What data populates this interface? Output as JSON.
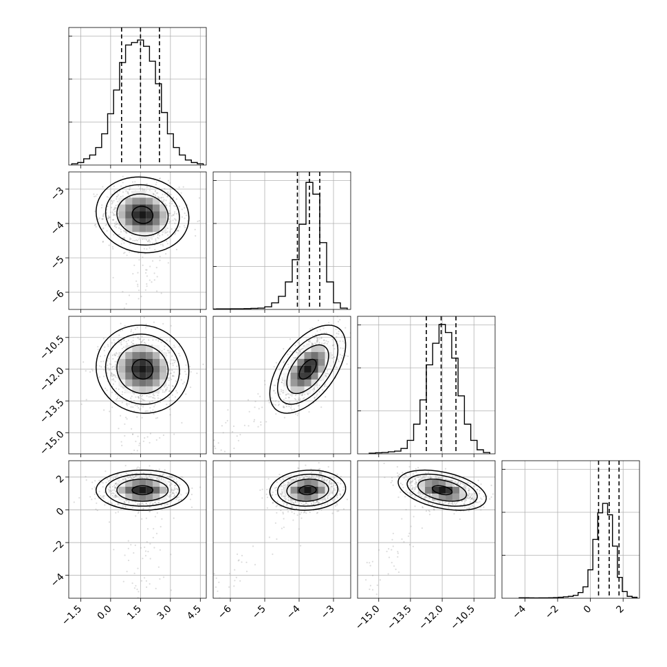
{
  "chart_data": {
    "type": "corner",
    "grid": true,
    "parameters": [
      {
        "range": [
          -2.1,
          4.8
        ],
        "ticks": [
          -1.5,
          0.0,
          1.5,
          3.0,
          4.5
        ],
        "tick_labels": [
          "−1.5",
          "0.0",
          "1.5",
          "3.0",
          "4.5"
        ],
        "quantiles": [
          0.55,
          1.5,
          2.45
        ],
        "hist_x": [
          -1.8,
          -1.5,
          -1.2,
          -0.9,
          -0.6,
          -0.3,
          0.0,
          0.3,
          0.6,
          0.9,
          1.2,
          1.5,
          1.8,
          2.1,
          2.4,
          2.7,
          3.0,
          3.3,
          3.6,
          3.9,
          4.2,
          4.5
        ],
        "hist_counts": [
          0.01,
          0.02,
          0.05,
          0.08,
          0.14,
          0.25,
          0.41,
          0.6,
          0.82,
          0.96,
          0.98,
          1.0,
          0.95,
          0.83,
          0.65,
          0.42,
          0.25,
          0.14,
          0.08,
          0.04,
          0.02,
          0.01
        ],
        "hist_max": 1.1,
        "center": 1.6,
        "spread": 0.95
      },
      {
        "range": [
          -6.5,
          -2.5
        ],
        "ticks": [
          -6,
          -5,
          -4,
          -3
        ],
        "tick_labels": [
          "−6",
          "−5",
          "−4",
          "−3"
        ],
        "quantiles": [
          -4.05,
          -3.7,
          -3.4
        ],
        "hist_x": [
          -6.5,
          -6.3,
          -6.1,
          -5.9,
          -5.7,
          -5.5,
          -5.3,
          -5.1,
          -4.9,
          -4.7,
          -4.5,
          -4.3,
          -4.1,
          -3.9,
          -3.7,
          -3.5,
          -3.3,
          -3.1,
          -2.9,
          -2.7
        ],
        "hist_counts": [
          0.003,
          0.004,
          0.004,
          0.005,
          0.005,
          0.006,
          0.008,
          0.01,
          0.02,
          0.05,
          0.1,
          0.21,
          0.38,
          0.65,
          0.97,
          0.88,
          0.51,
          0.21,
          0.05,
          0.01
        ],
        "hist_max": 1.05,
        "center": -3.75,
        "spread": 0.45
      },
      {
        "range": [
          -16.0,
          -9.5
        ],
        "ticks": [
          -15.0,
          -13.5,
          -12.0,
          -10.5
        ],
        "tick_labels": [
          "−15.0",
          "−13.5",
          "−12.0",
          "−10.5"
        ],
        "quantiles": [
          -12.75,
          -12.05,
          -11.35
        ],
        "hist_x": [
          -15.3,
          -15.0,
          -14.7,
          -14.4,
          -14.1,
          -13.8,
          -13.5,
          -13.2,
          -12.9,
          -12.6,
          -12.3,
          -12.0,
          -11.7,
          -11.4,
          -11.1,
          -10.8,
          -10.5,
          -10.2,
          -9.9
        ],
        "hist_counts": [
          0.005,
          0.008,
          0.01,
          0.015,
          0.02,
          0.04,
          0.1,
          0.22,
          0.4,
          0.66,
          0.82,
          0.96,
          0.9,
          0.71,
          0.43,
          0.22,
          0.1,
          0.03,
          0.01
        ],
        "hist_max": 1.02,
        "center": -12.0,
        "spread": 0.85
      },
      {
        "range": [
          -5.4,
          3.0
        ],
        "ticks": [
          -4,
          -2,
          0,
          2
        ],
        "tick_labels": [
          "−4",
          "−2",
          "0",
          "2"
        ],
        "quantiles": [
          0.5,
          1.15,
          1.75
        ],
        "hist_x": [
          -4.2,
          -3.9,
          -3.6,
          -3.3,
          -3.0,
          -2.7,
          -2.4,
          -2.1,
          -1.8,
          -1.5,
          -1.2,
          -0.9,
          -0.6,
          -0.3,
          0.0,
          0.3,
          0.6,
          0.9,
          1.2,
          1.5,
          1.8,
          2.1,
          2.4,
          2.7
        ],
        "hist_counts": [
          0.005,
          0.005,
          0.004,
          0.003,
          0.004,
          0.004,
          0.005,
          0.007,
          0.01,
          0.015,
          0.02,
          0.03,
          0.06,
          0.12,
          0.3,
          0.62,
          0.9,
          1.0,
          0.88,
          0.55,
          0.22,
          0.07,
          0.02,
          0.01
        ],
        "hist_max": 1.45,
        "center": 1.2,
        "spread": 0.5
      }
    ],
    "correlations": {
      "1-0": -0.08,
      "2-0": -0.05,
      "2-1": 0.55,
      "3-0": 0.0,
      "3-1": 0.08,
      "3-2": -0.4
    },
    "colors": {
      "line": "#000000",
      "grid": "#b0b0b0",
      "points": "#9a9a9a"
    }
  }
}
